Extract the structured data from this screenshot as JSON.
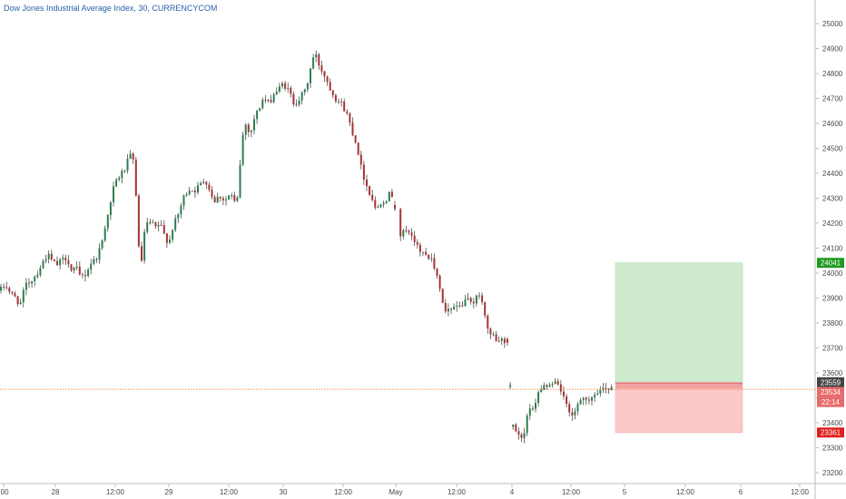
{
  "title": "Dow Jones Industrial Average Index, 30, CURRENCYCOM",
  "colors": {
    "up": "#2e7d4f",
    "down": "#a83232",
    "wick": "#333333",
    "axis": "#bdbdbd",
    "price_line": "#e8761e",
    "profit_zone": "#cdebcc",
    "loss_zone": "#fcc9c9",
    "entry_line": "#e06767",
    "target_badge": "#1e9a1e",
    "stop_badge": "#e01e1e",
    "entry_badge": "#444444",
    "last_badge": "#e86a6a"
  },
  "chart_data": {
    "type": "candlestick",
    "y_ticks": [
      25000,
      24900,
      24800,
      24700,
      24600,
      24500,
      24400,
      24300,
      24200,
      24100,
      24000,
      23900,
      23800,
      23700,
      23600,
      23500,
      23400,
      23300,
      23200
    ],
    "x_ticks": [
      ":00",
      "28",
      "12:00",
      "29",
      "12:00",
      "30",
      "12:00",
      "May",
      "12:00",
      "4",
      "12:00",
      "5",
      "12:00",
      "6",
      "12:00"
    ],
    "ylim": [
      23170,
      25030
    ],
    "xlim": [
      -1,
      931
    ],
    "position": {
      "target": 24041,
      "entry": 23559,
      "stop": 23361,
      "target_label": "24041",
      "entry_label": "23559",
      "stop_label": "23361"
    },
    "last_price": {
      "value": 23534,
      "label": "23534",
      "countdown": "22:14"
    },
    "anchors": [
      [
        0,
        23930
      ],
      [
        6,
        23955
      ],
      [
        12,
        23915
      ],
      [
        18,
        23900
      ],
      [
        22,
        23870
      ],
      [
        28,
        23950
      ],
      [
        34,
        23970
      ],
      [
        40,
        23995
      ],
      [
        46,
        24035
      ],
      [
        52,
        24075
      ],
      [
        56,
        24055
      ],
      [
        62,
        24030
      ],
      [
        68,
        24050
      ],
      [
        74,
        24065
      ],
      [
        78,
        24010
      ],
      [
        84,
        24020
      ],
      [
        88,
        23985
      ],
      [
        94,
        23995
      ],
      [
        100,
        24040
      ],
      [
        106,
        24060
      ],
      [
        112,
        24120
      ],
      [
        118,
        24230
      ],
      [
        122,
        24280
      ],
      [
        126,
        24360
      ],
      [
        132,
        24390
      ],
      [
        138,
        24420
      ],
      [
        142,
        24460
      ],
      [
        146,
        24480
      ],
      [
        150,
        24310
      ],
      [
        153,
        24090
      ],
      [
        156,
        24050
      ],
      [
        160,
        24190
      ],
      [
        166,
        24200
      ],
      [
        172,
        24180
      ],
      [
        176,
        24200
      ],
      [
        180,
        24160
      ],
      [
        186,
        24120
      ],
      [
        190,
        24180
      ],
      [
        196,
        24230
      ],
      [
        202,
        24300
      ],
      [
        208,
        24340
      ],
      [
        214,
        24330
      ],
      [
        220,
        24350
      ],
      [
        226,
        24380
      ],
      [
        230,
        24340
      ],
      [
        236,
        24290
      ],
      [
        242,
        24310
      ],
      [
        248,
        24290
      ],
      [
        254,
        24320
      ],
      [
        258,
        24280
      ],
      [
        262,
        24300
      ],
      [
        266,
        24520
      ],
      [
        270,
        24600
      ],
      [
        276,
        24560
      ],
      [
        280,
        24620
      ],
      [
        284,
        24650
      ],
      [
        290,
        24700
      ],
      [
        296,
        24680
      ],
      [
        302,
        24720
      ],
      [
        308,
        24740
      ],
      [
        312,
        24760
      ],
      [
        318,
        24730
      ],
      [
        324,
        24680
      ],
      [
        330,
        24700
      ],
      [
        336,
        24730
      ],
      [
        340,
        24780
      ],
      [
        344,
        24860
      ],
      [
        348,
        24870
      ],
      [
        352,
        24830
      ],
      [
        358,
        24790
      ],
      [
        364,
        24740
      ],
      [
        370,
        24700
      ],
      [
        376,
        24680
      ],
      [
        382,
        24640
      ],
      [
        388,
        24570
      ],
      [
        394,
        24500
      ],
      [
        398,
        24420
      ],
      [
        404,
        24350
      ],
      [
        410,
        24300
      ],
      [
        414,
        24250
      ],
      [
        420,
        24290
      ],
      [
        426,
        24300
      ],
      [
        430,
        24320
      ],
      [
        434,
        24310
      ],
      [
        438,
        24130
      ],
      [
        444,
        24160
      ],
      [
        450,
        24175
      ],
      [
        454,
        24160
      ],
      [
        458,
        24120
      ],
      [
        464,
        24080
      ],
      [
        470,
        24070
      ],
      [
        476,
        24060
      ],
      [
        482,
        23980
      ],
      [
        486,
        23900
      ],
      [
        490,
        23850
      ],
      [
        496,
        23860
      ],
      [
        502,
        23870
      ],
      [
        508,
        23860
      ],
      [
        514,
        23890
      ],
      [
        520,
        23880
      ],
      [
        526,
        23910
      ],
      [
        530,
        23900
      ],
      [
        536,
        23790
      ],
      [
        540,
        23760
      ],
      [
        546,
        23740
      ],
      [
        552,
        23730
      ],
      [
        556,
        23730
      ],
      [
        560,
        23720
      ],
      [
        564,
        23390
      ],
      [
        570,
        23370
      ],
      [
        576,
        23340
      ],
      [
        582,
        23440
      ],
      [
        588,
        23460
      ],
      [
        594,
        23520
      ],
      [
        600,
        23560
      ],
      [
        606,
        23540
      ],
      [
        610,
        23550
      ],
      [
        614,
        23560
      ],
      [
        618,
        23530
      ],
      [
        622,
        23490
      ],
      [
        626,
        23440
      ],
      [
        630,
        23420
      ],
      [
        636,
        23460
      ],
      [
        642,
        23490
      ],
      [
        648,
        23480
      ],
      [
        654,
        23510
      ],
      [
        660,
        23520
      ],
      [
        666,
        23540
      ],
      [
        672,
        23545
      ],
      [
        676,
        23534
      ]
    ]
  }
}
